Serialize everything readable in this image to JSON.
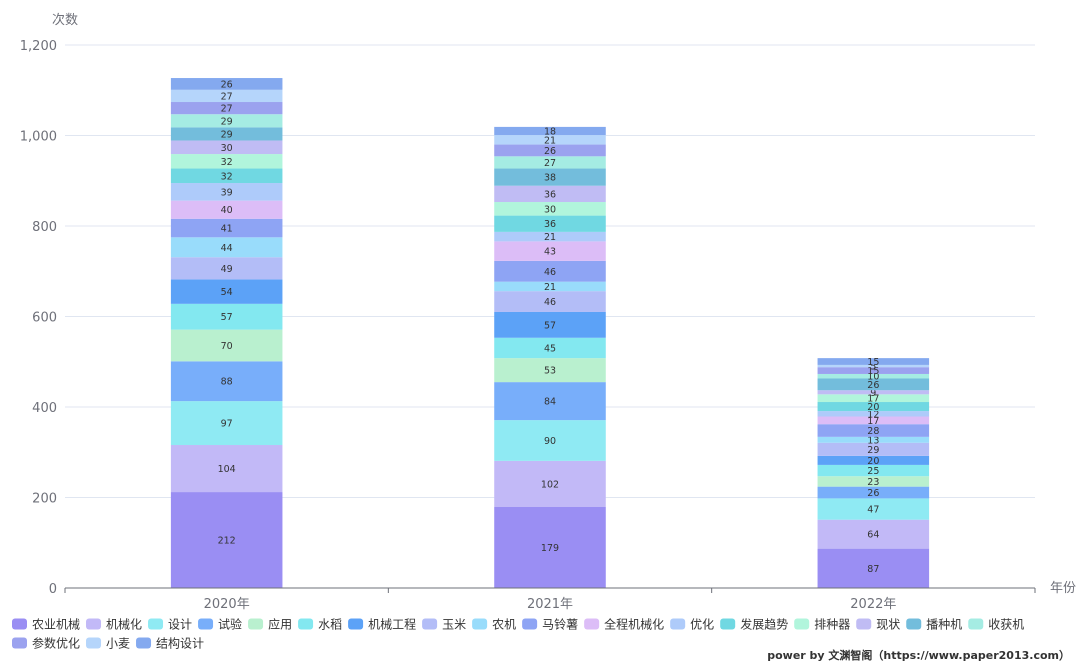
{
  "chart_data": {
    "type": "bar",
    "stacked": true,
    "categories": [
      "2020年",
      "2021年",
      "2022年"
    ],
    "xlabel": "年份",
    "ylabel": "次数",
    "ylim": [
      0,
      1200
    ],
    "yticks": [
      "0",
      "200",
      "400",
      "600",
      "800",
      "1,000",
      "1,200"
    ],
    "ytick_values": [
      0,
      200,
      400,
      600,
      800,
      1000,
      1200
    ],
    "grid": true,
    "legend_position": "bottom-left",
    "series": [
      {
        "name": "农业机械",
        "values": [
          212,
          179,
          87
        ],
        "color": "#9a8ef3"
      },
      {
        "name": "机械化",
        "values": [
          104,
          102,
          64
        ],
        "color": "#c2b9f7"
      },
      {
        "name": "设计",
        "values": [
          97,
          90,
          47
        ],
        "color": "#8feaf3"
      },
      {
        "name": "试验",
        "values": [
          88,
          84,
          26
        ],
        "color": "#78aefa"
      },
      {
        "name": "应用",
        "values": [
          70,
          53,
          23
        ],
        "color": "#b9f0cf"
      },
      {
        "name": "水稻",
        "values": [
          57,
          45,
          25
        ],
        "color": "#83e8f0"
      },
      {
        "name": "机械工程",
        "values": [
          54,
          57,
          20
        ],
        "color": "#5ca2f7"
      },
      {
        "name": "玉米",
        "values": [
          49,
          46,
          29
        ],
        "color": "#b3bdf7"
      },
      {
        "name": "农机",
        "values": [
          44,
          21,
          13
        ],
        "color": "#99dcfb"
      },
      {
        "name": "马铃薯",
        "values": [
          41,
          46,
          28
        ],
        "color": "#8ea4f4"
      },
      {
        "name": "全程机械化",
        "values": [
          40,
          43,
          17
        ],
        "color": "#dcbdf7"
      },
      {
        "name": "优化",
        "values": [
          39,
          21,
          12
        ],
        "color": "#aecbfa"
      },
      {
        "name": "发展趋势",
        "values": [
          32,
          36,
          20
        ],
        "color": "#70d8e2"
      },
      {
        "name": "排种器",
        "values": [
          32,
          30,
          17
        ],
        "color": "#b1f5dc"
      },
      {
        "name": "现状",
        "values": [
          30,
          36,
          9
        ],
        "color": "#c0bcf4"
      },
      {
        "name": "播种机",
        "values": [
          29,
          38,
          26
        ],
        "color": "#73bddc"
      },
      {
        "name": "收获机",
        "values": [
          29,
          27,
          10
        ],
        "color": "#a5ece3"
      },
      {
        "name": "参数优化",
        "values": [
          27,
          26,
          15
        ],
        "color": "#9ba2ef"
      },
      {
        "name": "小麦",
        "values": [
          27,
          21,
          5
        ],
        "color": "#b5d5fb"
      },
      {
        "name": "结构设计",
        "values": [
          26,
          18,
          15
        ],
        "color": "#84a9ef"
      }
    ]
  },
  "credit": "power by 文渊智阁（https://www.paper2013.com）"
}
